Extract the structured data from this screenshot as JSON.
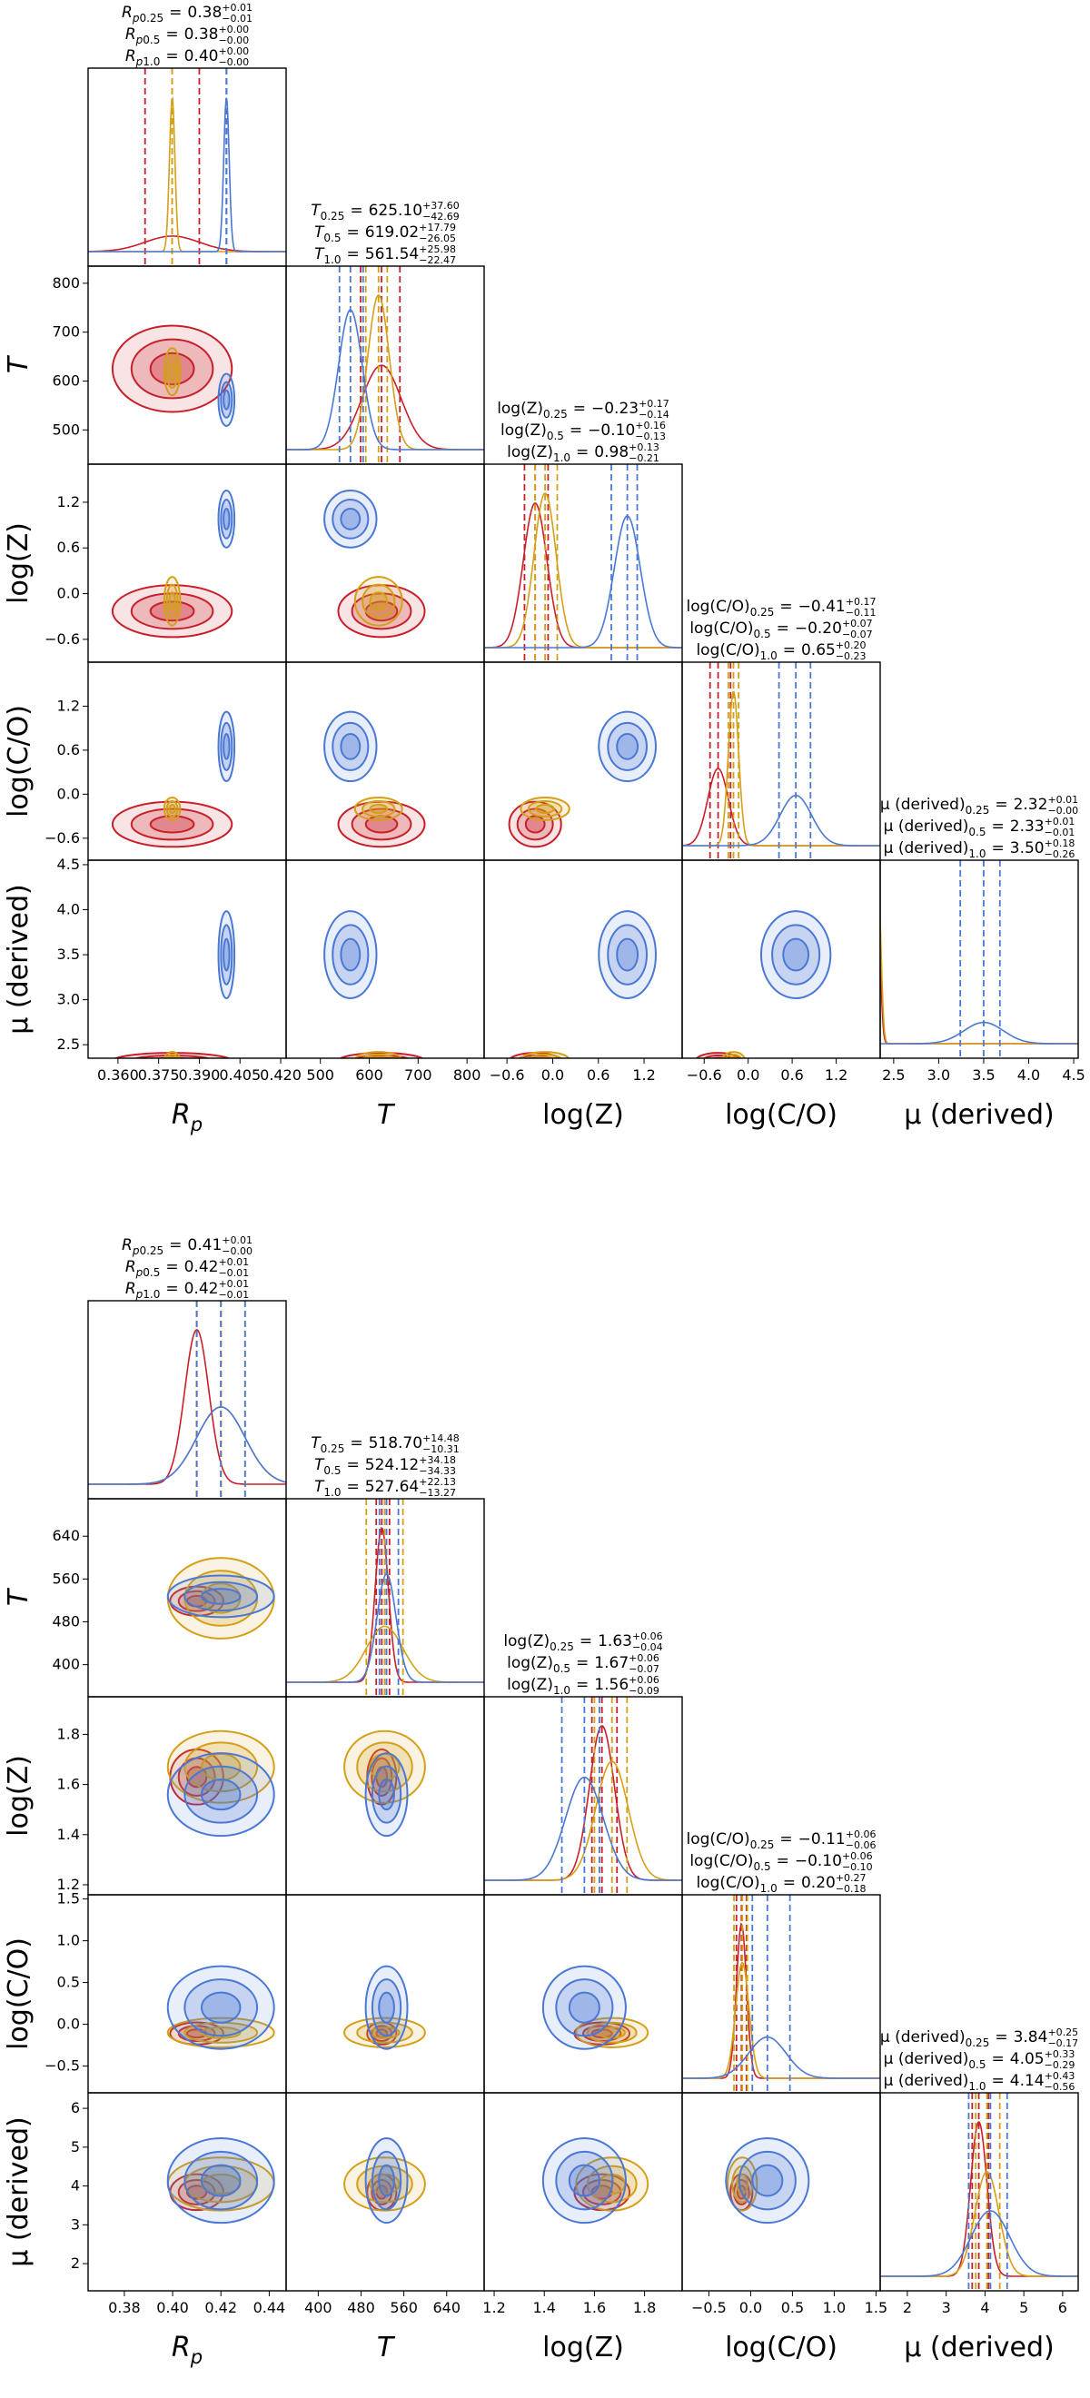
{
  "chart_data": [
    {
      "type": "corner",
      "relation": "=",
      "params": [
        {
          "label": "R",
          "label_sub": "p",
          "italic": true,
          "lim": [
            0.349,
            0.422
          ],
          "ticks": [
            {
              "value": 0.36,
              "label": "0.360"
            },
            {
              "value": 0.375,
              "label": "0.375"
            },
            {
              "value": 0.39,
              "label": "0.390"
            },
            {
              "value": 0.405,
              "label": "0.405"
            },
            {
              "value": 0.42,
              "label": "0.420"
            }
          ]
        },
        {
          "label": "T",
          "italic": true,
          "lim": [
            430,
            835
          ],
          "ticks": [
            500,
            600,
            700,
            800
          ]
        },
        {
          "label": "log(Z)",
          "lim": [
            -0.9,
            1.7
          ],
          "ticks": [
            {
              "value": -0.6,
              "label": "−0.6"
            },
            {
              "value": 0,
              "label": "0.0"
            },
            0.6,
            1.2
          ]
        },
        {
          "label": "log(C/O)",
          "lim": [
            -0.9,
            1.8
          ],
          "ticks": [
            {
              "value": -0.6,
              "label": "−0.6"
            },
            {
              "value": 0,
              "label": "0.0"
            },
            0.6,
            1.2
          ]
        },
        {
          "label": "μ (derived)",
          "lim": [
            2.35,
            4.55
          ],
          "ticks": [
            2.5,
            {
              "value": 3,
              "label": "3.0"
            },
            3.5,
            {
              "value": 4,
              "label": "4.0"
            },
            4.5
          ]
        }
      ],
      "series": [
        {
          "name": "0.25",
          "color": "#c8202a",
          "values": [
            0.38,
            625.1,
            -0.23,
            -0.41,
            2.32
          ],
          "value_labels": [
            "0.38",
            "625.10",
            "−0.23",
            "−0.41",
            "2.32"
          ],
          "plus": [
            0.01,
            37.6,
            0.17,
            0.17,
            0.01
          ],
          "plus_labels": [
            "+0.01",
            "+37.60",
            "+0.17",
            "+0.17",
            "+0.01"
          ],
          "minus": [
            -0.01,
            -42.69,
            -0.14,
            -0.11,
            0
          ],
          "minus_labels": [
            "−0.01",
            "−42.69",
            "−0.14",
            "−0.11",
            "−0.00"
          ]
        },
        {
          "name": "0.5",
          "color": "#d4a017",
          "values": [
            0.38,
            619.02,
            -0.1,
            -0.2,
            2.33
          ],
          "value_labels": [
            "0.38",
            "619.02",
            "−0.10",
            "−0.20",
            "2.33"
          ],
          "plus": [
            0,
            17.79,
            0.16,
            0.07,
            0.01
          ],
          "plus_labels": [
            "+0.00",
            "+17.79",
            "+0.16",
            "+0.07",
            "+0.01"
          ],
          "minus": [
            0,
            -26.05,
            -0.13,
            -0.07,
            -0.01
          ],
          "minus_labels": [
            "−0.00",
            "−26.05",
            "−0.13",
            "−0.07",
            "−0.01"
          ]
        },
        {
          "name": "1.0",
          "color": "#4a78d4",
          "values": [
            0.4,
            561.54,
            0.98,
            0.65,
            3.5
          ],
          "value_labels": [
            "0.40",
            "561.54",
            "0.98",
            "0.65",
            "3.50"
          ],
          "plus": [
            0,
            25.98,
            0.13,
            0.2,
            0.18
          ],
          "plus_labels": [
            "+0.00",
            "+25.98",
            "+0.13",
            "+0.20",
            "+0.18"
          ],
          "minus": [
            0,
            -22.47,
            -0.21,
            -0.23,
            -0.26
          ],
          "minus_labels": [
            "−0.00",
            "−22.47",
            "−0.21",
            "−0.23",
            "−0.26"
          ]
        }
      ]
    },
    {
      "type": "corner",
      "relation": "=",
      "params": [
        {
          "label": "R",
          "label_sub": "p",
          "italic": true,
          "lim": [
            0.365,
            0.447
          ],
          "ticks": [
            0.38,
            {
              "value": 0.4,
              "label": "0.40"
            },
            0.42,
            0.44
          ]
        },
        {
          "label": "T",
          "italic": true,
          "lim": [
            340,
            710
          ],
          "ticks": [
            400,
            480,
            560,
            640
          ]
        },
        {
          "label": "log(Z)",
          "lim": [
            1.16,
            1.95
          ],
          "ticks": [
            1.2,
            1.4,
            1.6,
            1.8
          ]
        },
        {
          "label": "log(C/O)",
          "lim": [
            -0.82,
            1.55
          ],
          "ticks": [
            {
              "value": -0.5,
              "label": "−0.5"
            },
            {
              "value": 0,
              "label": "0.0"
            },
            0.5,
            {
              "value": 1,
              "label": "1.0"
            },
            1.5
          ]
        },
        {
          "label": "μ (derived)",
          "lim": [
            1.3,
            6.4
          ],
          "ticks": [
            2,
            3,
            4,
            5,
            6
          ]
        }
      ],
      "series": [
        {
          "name": "0.25",
          "color": "#c8202a",
          "values": [
            0.41,
            518.7,
            1.63,
            -0.11,
            3.84
          ],
          "value_labels": [
            "0.41",
            "518.70",
            "1.63",
            "−0.11",
            "3.84"
          ],
          "plus": [
            0.01,
            14.48,
            0.06,
            0.06,
            0.25
          ],
          "plus_labels": [
            "+0.01",
            "+14.48",
            "+0.06",
            "+0.06",
            "+0.25"
          ],
          "minus": [
            0,
            -10.31,
            -0.04,
            -0.06,
            -0.17
          ],
          "minus_labels": [
            "−0.00",
            "−10.31",
            "−0.04",
            "−0.06",
            "−0.17"
          ]
        },
        {
          "name": "0.5",
          "color": "#d4a017",
          "values": [
            0.42,
            524.12,
            1.67,
            -0.1,
            4.05
          ],
          "value_labels": [
            "0.42",
            "524.12",
            "1.67",
            "−0.10",
            "4.05"
          ],
          "plus": [
            0.01,
            34.18,
            0.06,
            0.06,
            0.33
          ],
          "plus_labels": [
            "+0.01",
            "+34.18",
            "+0.06",
            "+0.06",
            "+0.33"
          ],
          "minus": [
            -0.01,
            -34.33,
            -0.07,
            -0.1,
            -0.29
          ],
          "minus_labels": [
            "−0.01",
            "−34.33",
            "−0.07",
            "−0.10",
            "−0.29"
          ]
        },
        {
          "name": "1.0",
          "color": "#4a78d4",
          "values": [
            0.42,
            527.64,
            1.56,
            0.2,
            4.14
          ],
          "value_labels": [
            "0.42",
            "527.64",
            "1.56",
            "0.20",
            "4.14"
          ],
          "plus": [
            0.01,
            22.13,
            0.06,
            0.27,
            0.43
          ],
          "plus_labels": [
            "+0.01",
            "+22.13",
            "+0.06",
            "+0.27",
            "+0.43"
          ],
          "minus": [
            -0.01,
            -13.27,
            -0.09,
            -0.18,
            -0.56
          ],
          "minus_labels": [
            "−0.01",
            "−13.27",
            "−0.09",
            "−0.18",
            "−0.56"
          ]
        }
      ]
    }
  ]
}
